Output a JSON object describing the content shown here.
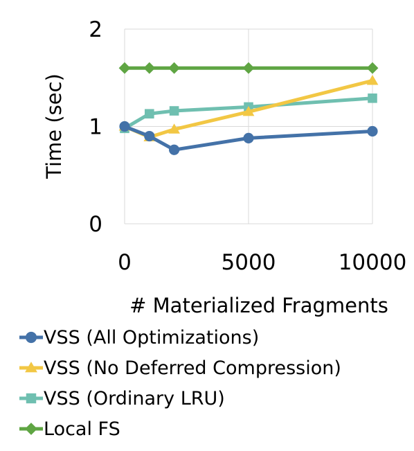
{
  "chart_data": {
    "type": "line",
    "title": "",
    "xlabel": "# Materialized Fragments",
    "ylabel": "Time (sec)",
    "xlim": [
      0,
      10000
    ],
    "ylim": [
      0,
      2
    ],
    "x_ticks": [
      "0",
      "5000",
      "10000"
    ],
    "y_ticks": [
      "0",
      "1",
      "2"
    ],
    "grid": "vertical and horizontal",
    "legend_position": "bottom",
    "x": [
      0,
      1000,
      2000,
      5000,
      10000
    ],
    "series": [
      {
        "name": "VSS (All Optimizations)",
        "marker": "circle",
        "color": "#4472A8",
        "values": [
          1.0,
          0.9,
          0.76,
          0.88,
          0.95
        ]
      },
      {
        "name": "VSS (No Deferred Compression)",
        "marker": "triangle",
        "color": "#F2C744",
        "values": [
          1.0,
          0.89,
          0.97,
          1.15,
          1.47
        ]
      },
      {
        "name": "VSS (Ordinary LRU)",
        "marker": "square",
        "color": "#6FBFB0",
        "values": [
          0.98,
          1.13,
          1.16,
          1.2,
          1.29
        ]
      },
      {
        "name": "Local FS",
        "marker": "diamond",
        "color": "#5FA543",
        "values": [
          1.6,
          1.6,
          1.6,
          1.6,
          1.6
        ]
      }
    ]
  }
}
